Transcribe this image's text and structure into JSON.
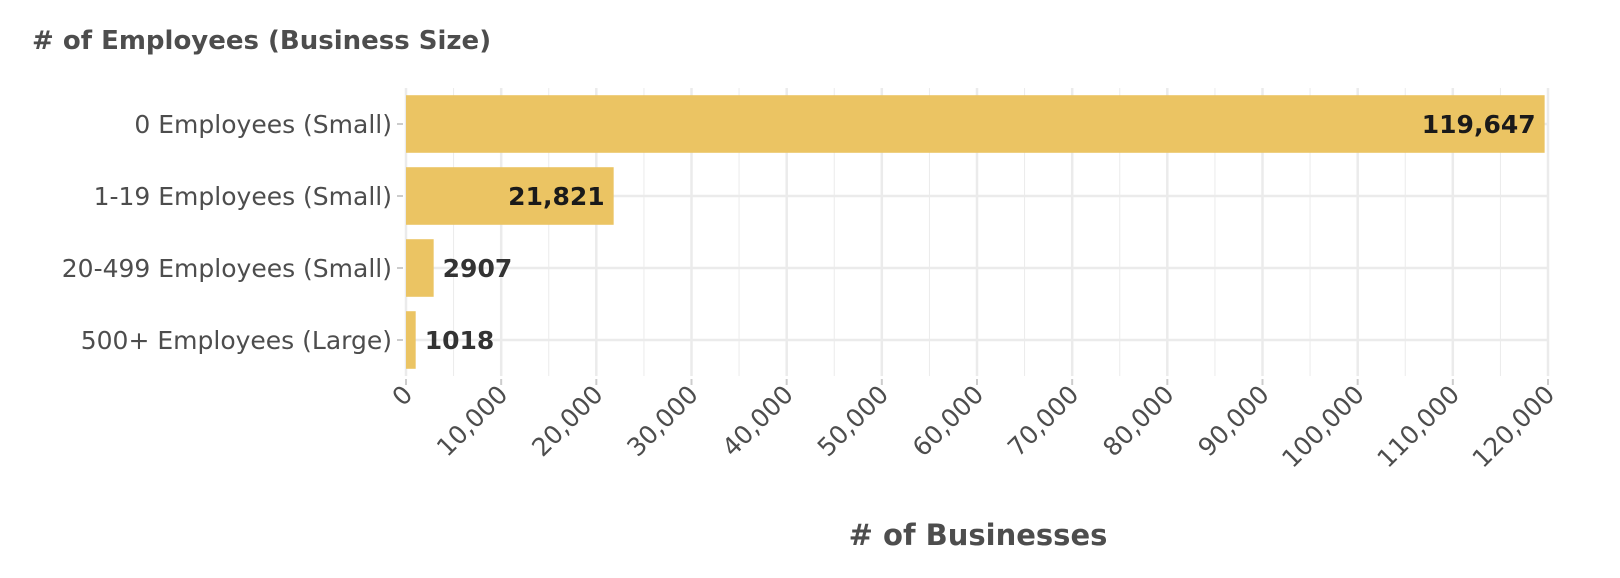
{
  "chart_data": {
    "type": "bar",
    "orientation": "horizontal",
    "title": "# of Employees (Business Size)",
    "xlabel": "# of Businesses",
    "ylabel": "",
    "categories": [
      "0 Employees (Small)",
      "1-19 Employees (Small)",
      "20-499 Employees (Small)",
      "500+ Employees (Large)"
    ],
    "values": [
      119647,
      21821,
      2907,
      1018
    ],
    "data_labels": [
      "119,647",
      "21,821",
      "2907",
      "1018"
    ],
    "xlim": [
      0,
      120000
    ],
    "x_ticks": [
      0,
      10000,
      20000,
      30000,
      40000,
      50000,
      60000,
      70000,
      80000,
      90000,
      100000,
      110000,
      120000
    ],
    "x_tick_labels": [
      "0",
      "10,000",
      "20,000",
      "30,000",
      "40,000",
      "50,000",
      "60,000",
      "70,000",
      "80,000",
      "90,000",
      "100,000",
      "110,000",
      "120,000"
    ],
    "grid": true,
    "legend": "none",
    "colors": {
      "bar": "#ebc463",
      "grid": "#ebebeb",
      "text": "#4d4d4d",
      "label_dark": "#1a1a1a"
    }
  }
}
